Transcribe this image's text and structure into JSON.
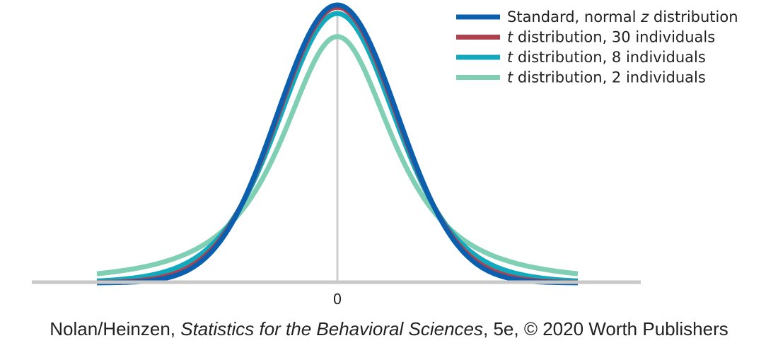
{
  "chart_data": {
    "type": "line",
    "title": "",
    "xlabel": "",
    "ylabel": "",
    "x_ticks": [
      {
        "value": 0,
        "label": "0"
      }
    ],
    "xlim": [
      -4,
      4
    ],
    "grid": false,
    "legend_position": "top-right",
    "series": [
      {
        "name_prefix": "Standard, normal ",
        "name_italic": "z",
        "name_suffix": " distribution",
        "df": null,
        "color": "#0a5fae"
      },
      {
        "name_prefix": "",
        "name_italic": "t",
        "name_suffix": " distribution, 30 individuals",
        "df": 30,
        "color": "#b0404c"
      },
      {
        "name_prefix": "",
        "name_italic": "t",
        "name_suffix": " distribution, 8 individuals",
        "df": 8,
        "color": "#11a9bd"
      },
      {
        "name_prefix": "",
        "name_italic": "t",
        "name_suffix": " distribution, 2 individuals",
        "df": 2,
        "color": "#7fcfb4"
      }
    ]
  },
  "credit": {
    "authors": "Nolan/Heinzen, ",
    "book_title": "Statistics for the Behavioral Sciences",
    "edition": ", 5e, © 2020 Worth Publishers"
  }
}
